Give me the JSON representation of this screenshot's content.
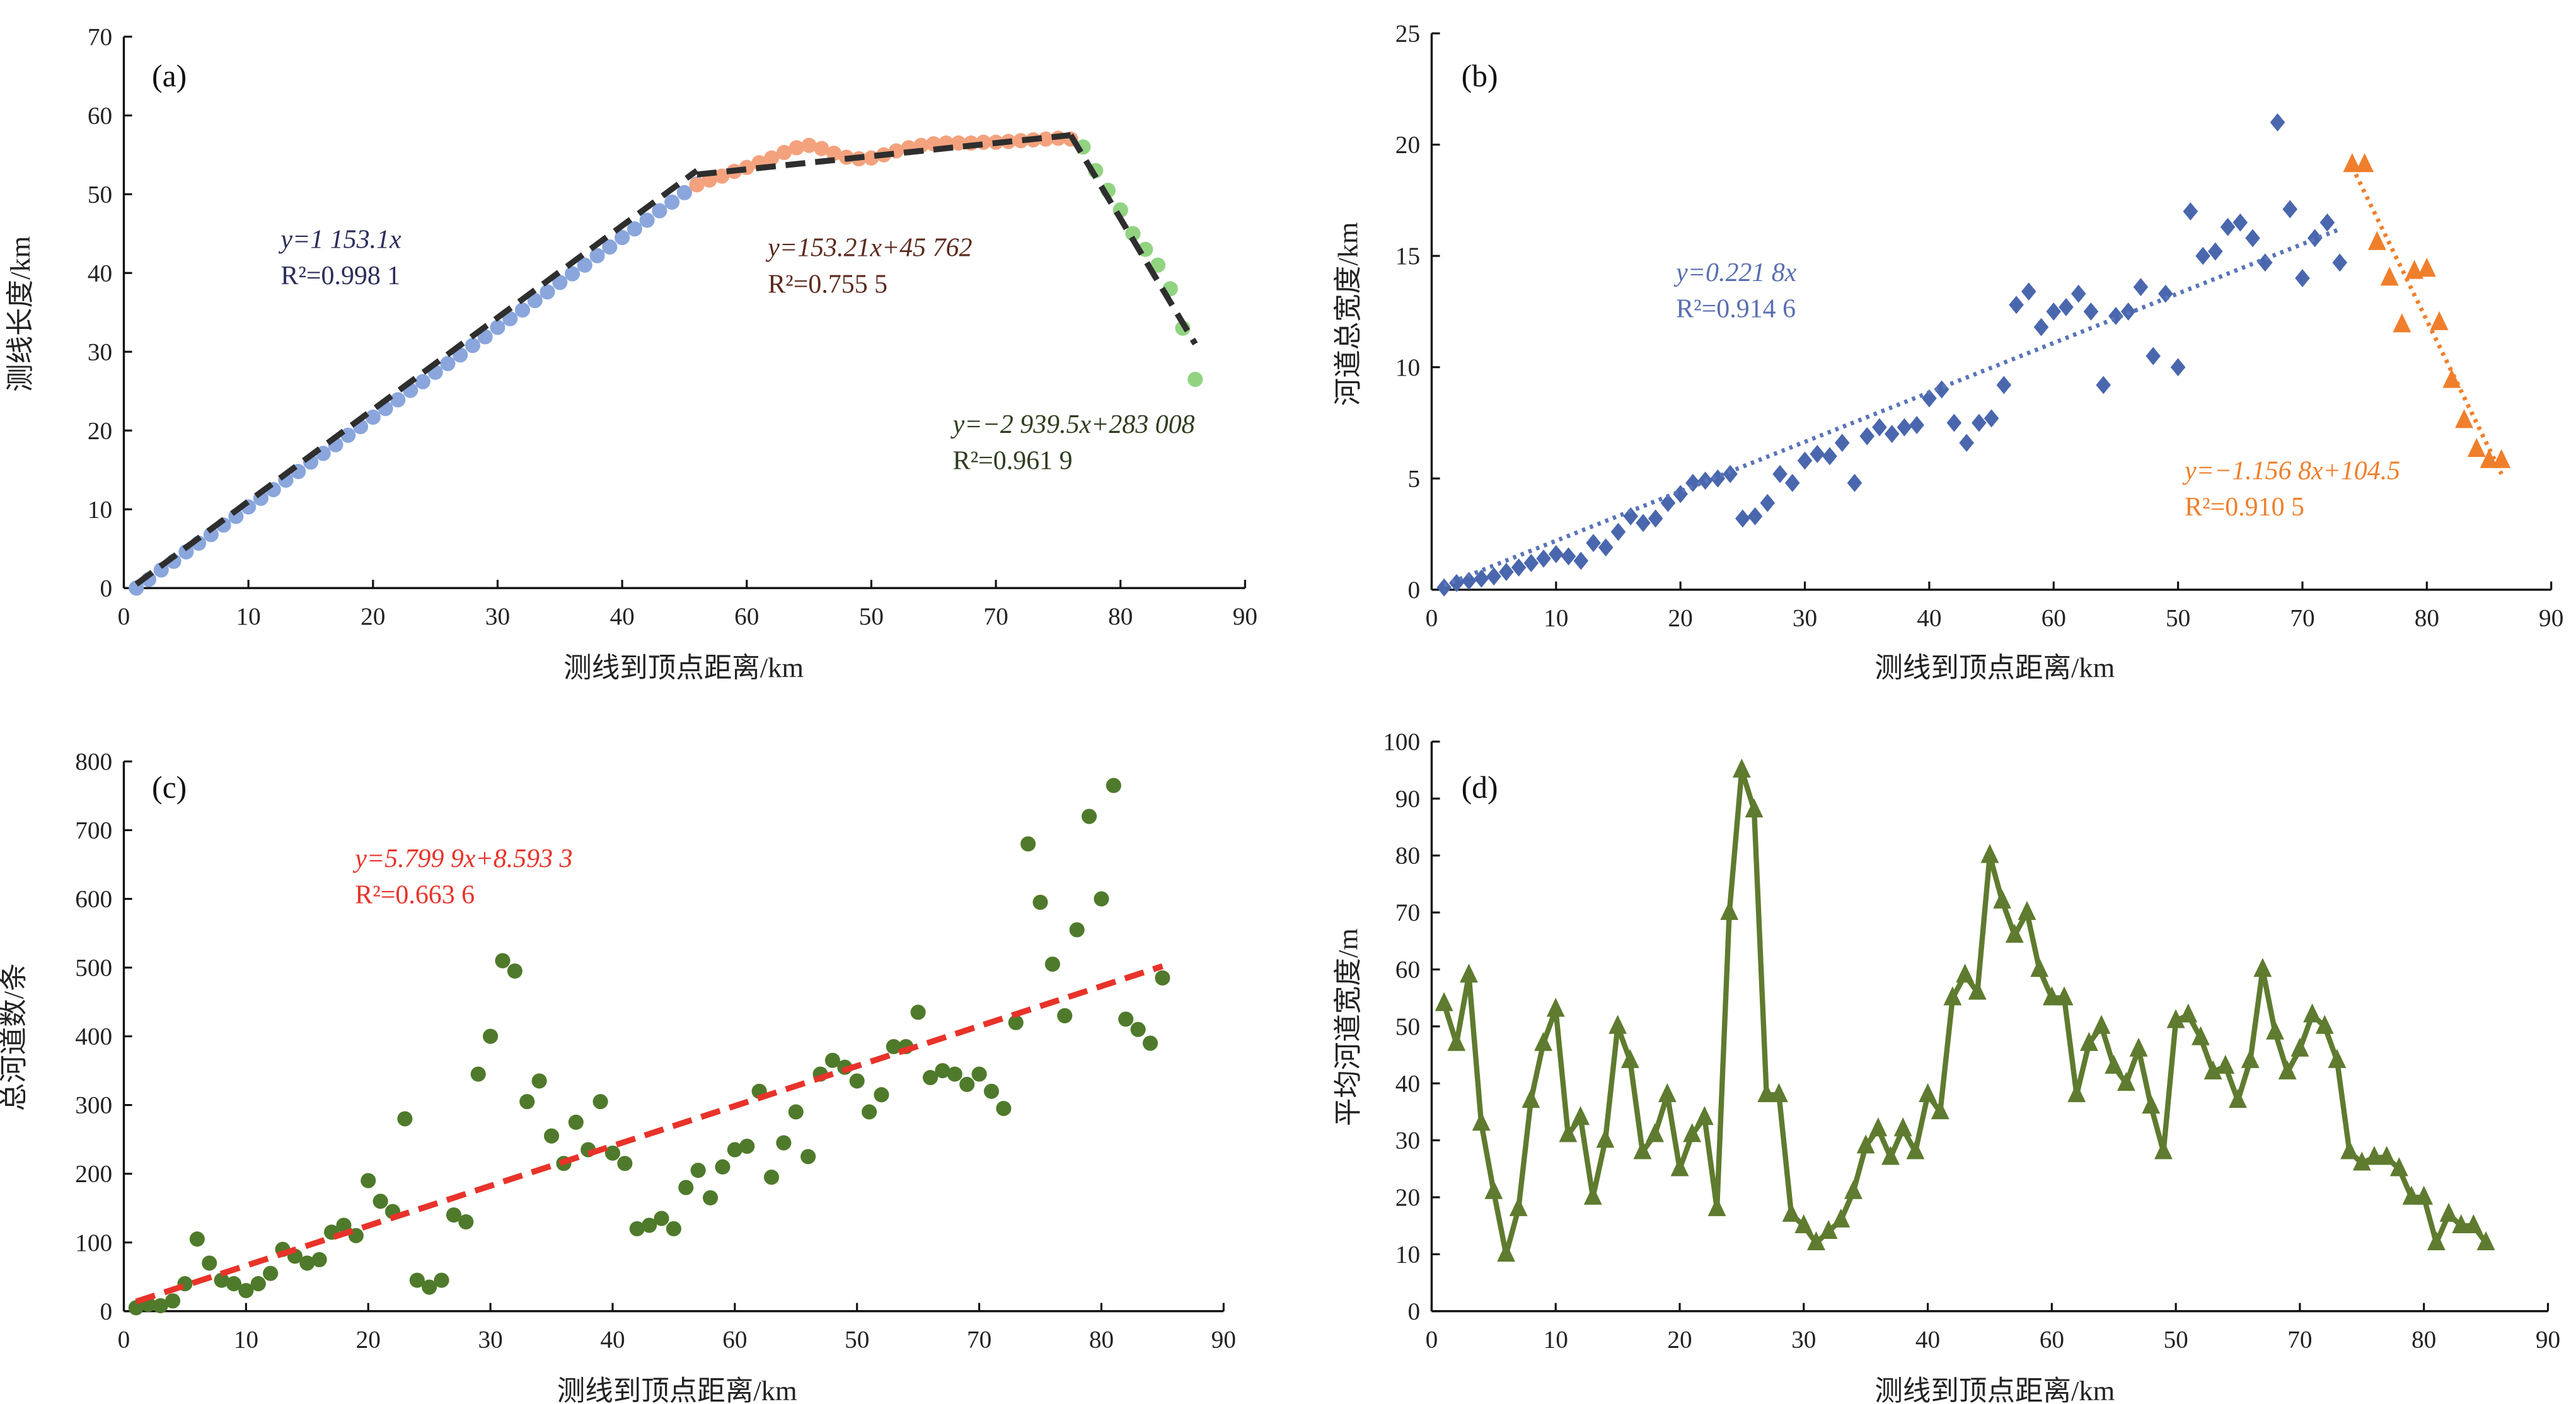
{
  "chart_data": [
    {
      "id": "a",
      "type": "scatter",
      "panel_label": "(a)",
      "xlabel": "测线到顶点距离/km",
      "ylabel": "测线长度/km",
      "xlim": [
        0,
        90
      ],
      "ylim": [
        0,
        70
      ],
      "xticks": [
        "0",
        "10",
        "20",
        "30",
        "40",
        "60",
        "50",
        "70",
        "80",
        "90"
      ],
      "yticks": [
        "0",
        "10",
        "20",
        "30",
        "40",
        "50",
        "60",
        "70"
      ],
      "series": [
        {
          "color": "#8aa6dc",
          "marker": "circle",
          "x": [
            1,
            2,
            3,
            4,
            5,
            6,
            7,
            8,
            9,
            10,
            11,
            12,
            13,
            14,
            15,
            16,
            17,
            18,
            19,
            20,
            21,
            22,
            23,
            24,
            25,
            26,
            27,
            28,
            29,
            30,
            31,
            32,
            33,
            34,
            35,
            36,
            37,
            38,
            39,
            40,
            41,
            42,
            43,
            44,
            45,
            46
          ],
          "y": [
            0,
            1.1,
            2.3,
            3.4,
            4.6,
            5.7,
            6.8,
            8.0,
            9.1,
            10.3,
            11.4,
            12.5,
            13.7,
            14.8,
            16.0,
            17.1,
            18.2,
            19.4,
            20.5,
            21.7,
            22.8,
            23.9,
            25.1,
            26.2,
            27.4,
            28.5,
            29.6,
            30.8,
            31.9,
            33.1,
            34.2,
            35.3,
            36.5,
            37.6,
            38.8,
            39.9,
            41.0,
            42.2,
            43.3,
            44.5,
            45.6,
            46.7,
            47.9,
            49.0,
            50.2,
            51.3
          ]
        },
        {
          "color": "#f4a27e",
          "marker": "circle",
          "x": [
            46,
            47,
            48,
            49,
            50,
            51,
            52,
            53,
            54,
            55,
            56,
            57,
            58,
            59,
            60,
            61,
            62,
            63,
            64,
            65,
            66,
            67,
            68,
            69,
            70,
            71,
            72,
            73,
            74,
            75,
            76
          ],
          "y": [
            51.2,
            51.8,
            52.3,
            52.9,
            53.4,
            54.0,
            54.6,
            55.3,
            55.9,
            56.2,
            55.8,
            55.2,
            54.7,
            54.5,
            54.6,
            55.0,
            55.5,
            55.9,
            56.2,
            56.4,
            56.5,
            56.5,
            56.5,
            56.6,
            56.6,
            56.7,
            56.8,
            56.9,
            57.0,
            57.1,
            57.0
          ]
        },
        {
          "color": "#92d382",
          "marker": "circle",
          "x": [
            77,
            78,
            79,
            80,
            81,
            82,
            83,
            84,
            85,
            86
          ],
          "y": [
            56,
            53,
            50.5,
            48,
            45,
            43,
            41,
            38,
            33,
            26.5
          ]
        }
      ],
      "fits": [
        {
          "color": "#2e2e2e",
          "style": "dashed",
          "x": [
            1,
            46
          ],
          "y": [
            0.5,
            53
          ],
          "equation": "y=1 153.1x",
          "r2": "R²=0.998 1",
          "text_color": "#2b2d5a"
        },
        {
          "color": "#2e2e2e",
          "style": "dashed",
          "x": [
            46,
            76
          ],
          "y": [
            52.5,
            57.5
          ],
          "equation": "y=153.21x+45 762",
          "r2": "R²=0.755 5",
          "text_color": "#5c2a1e"
        },
        {
          "color": "#2e2e2e",
          "style": "dashed",
          "x": [
            76,
            86
          ],
          "y": [
            57.5,
            31
          ],
          "equation": "y=−2 939.5x+283 008",
          "r2": "R²=0.961 9",
          "text_color": "#2f3d1f"
        }
      ]
    },
    {
      "id": "b",
      "type": "scatter",
      "panel_label": "(b)",
      "xlabel": "测线到顶点距离/km",
      "ylabel": "河道总宽度/km",
      "xlim": [
        0,
        90
      ],
      "ylim": [
        0,
        25
      ],
      "xticks": [
        "0",
        "10",
        "20",
        "30",
        "40",
        "60",
        "50",
        "70",
        "80",
        "90"
      ],
      "yticks": [
        "0",
        "5",
        "10",
        "15",
        "20",
        "25"
      ],
      "series": [
        {
          "color": "#4a67ae",
          "marker": "diamond",
          "x": [
            1,
            2,
            3,
            4,
            5,
            6,
            7,
            8,
            9,
            10,
            11,
            12,
            13,
            14,
            15,
            16,
            17,
            18,
            19,
            20,
            21,
            22,
            23,
            24,
            25,
            26,
            27,
            28,
            29,
            30,
            31,
            32,
            33,
            34,
            35,
            36,
            37,
            38,
            39,
            40,
            41,
            42,
            43,
            44,
            45,
            46,
            47,
            48,
            49,
            50,
            51,
            52,
            53,
            54,
            55,
            56,
            57,
            58,
            59,
            60,
            61,
            62,
            63,
            64,
            65,
            66,
            67,
            68,
            69,
            70,
            71,
            72,
            73
          ],
          "y": [
            0.1,
            0.3,
            0.4,
            0.5,
            0.6,
            0.8,
            1.0,
            1.2,
            1.4,
            1.6,
            1.5,
            1.3,
            2.1,
            1.9,
            2.6,
            3.3,
            3.0,
            3.2,
            3.9,
            4.3,
            4.8,
            4.9,
            5.0,
            5.2,
            3.2,
            3.3,
            3.9,
            5.2,
            4.8,
            5.8,
            6.1,
            6.0,
            6.6,
            4.8,
            6.9,
            7.3,
            7.0,
            7.3,
            7.4,
            8.6,
            9.0,
            7.5,
            6.6,
            7.5,
            7.7,
            9.2,
            12.8,
            13.4,
            11.8,
            12.5,
            12.7,
            13.3,
            12.5,
            9.2,
            12.3,
            12.5,
            13.6,
            10.5,
            13.3,
            10.0,
            17.0,
            15.0,
            15.2,
            16.3,
            16.5,
            15.8,
            14.7,
            21.0,
            17.1,
            14.0,
            15.8,
            16.5,
            14.7
          ]
        },
        {
          "color": "#f07f2c",
          "marker": "triangle",
          "x": [
            74,
            75,
            76,
            77,
            78,
            79,
            80,
            81,
            82,
            83,
            84,
            85,
            86
          ],
          "y": [
            19.1,
            19.1,
            15.6,
            14.0,
            11.9,
            14.3,
            14.4,
            12.0,
            9.4,
            7.6,
            6.3,
            5.8,
            5.8
          ]
        }
      ],
      "fits": [
        {
          "color": "#5a74b8",
          "style": "dotted",
          "x": [
            1,
            73
          ],
          "y": [
            0.2,
            16.2
          ],
          "equation": "y=0.221 8x",
          "r2": "R²=0.914 6",
          "text_color": "#5a6fb0"
        },
        {
          "color": "#f07f2c",
          "style": "dotted",
          "x": [
            74,
            86
          ],
          "y": [
            19.0,
            5.2
          ],
          "equation": "y=−1.156 8x+104.5",
          "r2": "R²=0.910 5",
          "text_color": "#f07f2c"
        }
      ]
    },
    {
      "id": "c",
      "type": "scatter",
      "panel_label": "(c)",
      "xlabel": "测线到顶点距离/km",
      "ylabel": "总河道数/条",
      "xlim": [
        0,
        90
      ],
      "ylim": [
        0,
        800
      ],
      "xticks": [
        "0",
        "10",
        "20",
        "30",
        "40",
        "60",
        "50",
        "70",
        "80",
        "90"
      ],
      "yticks": [
        "0",
        "100",
        "200",
        "300",
        "400",
        "500",
        "600",
        "700",
        "800"
      ],
      "series": [
        {
          "color": "#4f7a2b",
          "marker": "circle",
          "x": [
            1,
            2,
            3,
            4,
            5,
            6,
            7,
            8,
            9,
            10,
            11,
            12,
            13,
            14,
            15,
            16,
            17,
            18,
            19,
            20,
            21,
            22,
            23,
            24,
            25,
            26,
            27,
            28,
            29,
            30,
            31,
            32,
            33,
            34,
            35,
            36,
            37,
            38,
            39,
            40,
            41,
            42,
            43,
            44,
            45,
            46,
            47,
            48,
            49,
            50,
            51,
            52,
            53,
            54,
            55,
            56,
            57,
            58,
            59,
            60,
            61,
            62,
            63,
            64,
            65,
            66,
            67,
            68,
            69,
            70,
            71,
            72,
            73,
            74,
            75,
            76,
            77,
            78,
            79,
            80,
            81,
            82,
            83,
            84,
            85
          ],
          "y": [
            5,
            10,
            8,
            15,
            40,
            105,
            70,
            45,
            40,
            30,
            40,
            55,
            90,
            80,
            70,
            75,
            115,
            125,
            110,
            190,
            160,
            145,
            280,
            45,
            35,
            45,
            140,
            130,
            345,
            400,
            510,
            495,
            305,
            335,
            255,
            215,
            275,
            235,
            305,
            230,
            215,
            120,
            125,
            135,
            120,
            180,
            205,
            165,
            210,
            235,
            240,
            320,
            195,
            245,
            290,
            225,
            345,
            365,
            355,
            335,
            290,
            315,
            385,
            385,
            435,
            340,
            350,
            345,
            330,
            345,
            320,
            295,
            420,
            680,
            595,
            505,
            430,
            555,
            720,
            600,
            765,
            425,
            410,
            390,
            485
          ]
        }
      ],
      "fits": [
        {
          "color": "#e8332a",
          "style": "dashed",
          "x": [
            1,
            85
          ],
          "y": [
            14,
            502
          ],
          "equation": "y=5.799 9x+8.593 3",
          "r2": "R²=0.663 6",
          "text_color": "#e8332a"
        }
      ]
    },
    {
      "id": "d",
      "type": "line",
      "panel_label": "(d)",
      "xlabel": "测线到顶点距离/km",
      "ylabel": "平均河道宽度/m",
      "xlim": [
        0,
        90
      ],
      "ylim": [
        0,
        100
      ],
      "xticks": [
        "0",
        "10",
        "20",
        "30",
        "40",
        "60",
        "50",
        "70",
        "80",
        "90"
      ],
      "yticks": [
        "0",
        "10",
        "20",
        "30",
        "40",
        "50",
        "60",
        "70",
        "80",
        "90",
        "100"
      ],
      "series": [
        {
          "color": "#5e7b2f",
          "marker": "triangle",
          "connect": true,
          "x": [
            1,
            2,
            3,
            4,
            5,
            6,
            7,
            8,
            9,
            10,
            11,
            12,
            13,
            14,
            15,
            16,
            17,
            18,
            19,
            20,
            21,
            22,
            23,
            24,
            25,
            26,
            27,
            28,
            29,
            30,
            31,
            32,
            33,
            34,
            35,
            36,
            37,
            38,
            39,
            40,
            41,
            42,
            43,
            44,
            45,
            46,
            47,
            48,
            49,
            50,
            51,
            52,
            53,
            54,
            55,
            56,
            57,
            58,
            59,
            60,
            61,
            62,
            63,
            64,
            65,
            66,
            67,
            68,
            69,
            70,
            71,
            72,
            73,
            74,
            75,
            76,
            77,
            78,
            79,
            80,
            81,
            82,
            83,
            84,
            85
          ],
          "y": [
            54,
            47,
            59,
            33,
            21,
            10,
            18,
            37,
            47,
            53,
            31,
            34,
            20,
            30,
            50,
            44,
            28,
            31,
            38,
            25,
            31,
            34,
            18,
            70,
            95,
            88,
            38,
            38,
            17,
            15,
            12,
            14,
            16,
            21,
            29,
            32,
            27,
            32,
            28,
            38,
            35,
            55,
            59,
            56,
            80,
            72,
            66,
            70,
            60,
            55,
            55,
            38,
            47,
            50,
            43,
            40,
            46,
            36,
            28,
            51,
            52,
            48,
            42,
            43,
            37,
            44,
            60,
            49,
            42,
            46,
            52,
            50,
            44,
            28,
            26,
            27,
            27,
            25,
            20,
            20,
            12,
            17,
            15,
            15,
            12
          ]
        }
      ],
      "fits": []
    }
  ]
}
